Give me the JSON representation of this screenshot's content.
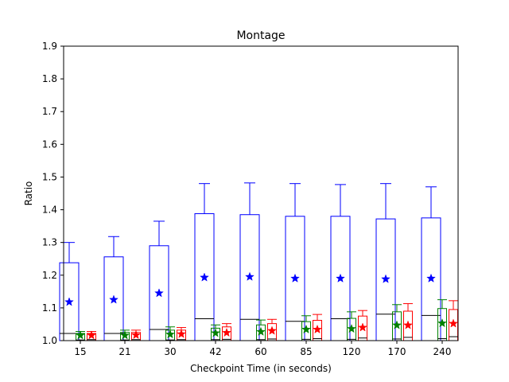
{
  "chart_data": {
    "type": "box",
    "title": "Montage",
    "xlabel": "Checkpoint Time (in seconds)",
    "ylabel": "Ratio",
    "ylim": [
      1.0,
      1.9
    ],
    "yticks": [
      "1.0",
      "1.1",
      "1.2",
      "1.3",
      "1.4",
      "1.5",
      "1.6",
      "1.7",
      "1.8",
      "1.9"
    ],
    "categories": [
      "15",
      "21",
      "30",
      "42",
      "60",
      "85",
      "120",
      "170",
      "240"
    ],
    "grid": false,
    "legend": "none",
    "series": [
      {
        "color": "#0000ff",
        "boxes": [
          {
            "median": 1.022,
            "q1": 1.0,
            "q3": 1.238,
            "whisker_low": 1.0,
            "whisker_high": 1.3,
            "mean": 1.118
          },
          {
            "median": 1.022,
            "q1": 1.0,
            "q3": 1.256,
            "whisker_low": 1.0,
            "whisker_high": 1.318,
            "mean": 1.125
          },
          {
            "median": 1.034,
            "q1": 1.0,
            "q3": 1.29,
            "whisker_low": 1.0,
            "whisker_high": 1.365,
            "mean": 1.145
          },
          {
            "median": 1.067,
            "q1": 1.0,
            "q3": 1.388,
            "whisker_low": 1.0,
            "whisker_high": 1.48,
            "mean": 1.193
          },
          {
            "median": 1.065,
            "q1": 1.0,
            "q3": 1.385,
            "whisker_low": 1.0,
            "whisker_high": 1.482,
            "mean": 1.195
          },
          {
            "median": 1.059,
            "q1": 1.0,
            "q3": 1.38,
            "whisker_low": 1.0,
            "whisker_high": 1.48,
            "mean": 1.19
          },
          {
            "median": 1.067,
            "q1": 1.0,
            "q3": 1.38,
            "whisker_low": 1.0,
            "whisker_high": 1.477,
            "mean": 1.19
          },
          {
            "median": 1.081,
            "q1": 1.0,
            "q3": 1.372,
            "whisker_low": 1.0,
            "whisker_high": 1.48,
            "mean": 1.188
          },
          {
            "median": 1.077,
            "q1": 1.0,
            "q3": 1.375,
            "whisker_low": 1.0,
            "whisker_high": 1.47,
            "mean": 1.19
          }
        ]
      },
      {
        "color": "#008000",
        "boxes": [
          {
            "median": 1.002,
            "q1": 1.0,
            "q3": 1.022,
            "whisker_low": 1.0,
            "whisker_high": 1.028,
            "mean": 1.016
          },
          {
            "median": 1.002,
            "q1": 1.0,
            "q3": 1.025,
            "whisker_low": 1.0,
            "whisker_high": 1.032,
            "mean": 1.016
          },
          {
            "median": 1.002,
            "q1": 1.0,
            "q3": 1.032,
            "whisker_low": 1.0,
            "whisker_high": 1.042,
            "mean": 1.019
          },
          {
            "median": 1.003,
            "q1": 1.0,
            "q3": 1.038,
            "whisker_low": 1.0,
            "whisker_high": 1.048,
            "mean": 1.023
          },
          {
            "median": 1.003,
            "q1": 1.0,
            "q3": 1.048,
            "whisker_low": 1.0,
            "whisker_high": 1.063,
            "mean": 1.027
          },
          {
            "median": 1.004,
            "q1": 1.0,
            "q3": 1.058,
            "whisker_low": 1.0,
            "whisker_high": 1.076,
            "mean": 1.034
          },
          {
            "median": 1.004,
            "q1": 1.0,
            "q3": 1.068,
            "whisker_low": 1.0,
            "whisker_high": 1.088,
            "mean": 1.036
          },
          {
            "median": 1.005,
            "q1": 1.0,
            "q3": 1.088,
            "whisker_low": 1.0,
            "whisker_high": 1.11,
            "mean": 1.047
          },
          {
            "median": 1.006,
            "q1": 1.0,
            "q3": 1.098,
            "whisker_low": 1.0,
            "whisker_high": 1.125,
            "mean": 1.053
          }
        ]
      },
      {
        "color": "#ff0000",
        "boxes": [
          {
            "median": 1.003,
            "q1": 1.0,
            "q3": 1.022,
            "whisker_low": 1.0,
            "whisker_high": 1.028,
            "mean": 1.016
          },
          {
            "median": 1.003,
            "q1": 1.0,
            "q3": 1.025,
            "whisker_low": 1.0,
            "whisker_high": 1.032,
            "mean": 1.017
          },
          {
            "median": 1.003,
            "q1": 1.0,
            "q3": 1.032,
            "whisker_low": 1.0,
            "whisker_high": 1.04,
            "mean": 1.02
          },
          {
            "median": 1.004,
            "q1": 1.0,
            "q3": 1.042,
            "whisker_low": 1.0,
            "whisker_high": 1.052,
            "mean": 1.024
          },
          {
            "median": 1.005,
            "q1": 1.0,
            "q3": 1.052,
            "whisker_low": 1.0,
            "whisker_high": 1.065,
            "mean": 1.03
          },
          {
            "median": 1.006,
            "q1": 1.0,
            "q3": 1.062,
            "whisker_low": 1.0,
            "whisker_high": 1.08,
            "mean": 1.034
          },
          {
            "median": 1.008,
            "q1": 1.0,
            "q3": 1.075,
            "whisker_low": 1.0,
            "whisker_high": 1.092,
            "mean": 1.04
          },
          {
            "median": 1.01,
            "q1": 1.0,
            "q3": 1.09,
            "whisker_low": 1.0,
            "whisker_high": 1.113,
            "mean": 1.047
          },
          {
            "median": 1.012,
            "q1": 1.0,
            "q3": 1.095,
            "whisker_low": 1.0,
            "whisker_high": 1.122,
            "mean": 1.052
          }
        ]
      }
    ]
  }
}
